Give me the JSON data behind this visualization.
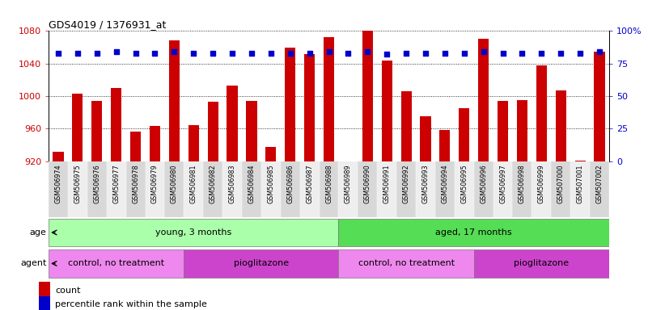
{
  "title": "GDS4019 / 1376931_at",
  "samples": [
    "GSM506974",
    "GSM506975",
    "GSM506976",
    "GSM506977",
    "GSM506978",
    "GSM506979",
    "GSM506980",
    "GSM506981",
    "GSM506982",
    "GSM506983",
    "GSM506984",
    "GSM506985",
    "GSM506986",
    "GSM506987",
    "GSM506988",
    "GSM506989",
    "GSM506990",
    "GSM506991",
    "GSM506992",
    "GSM506993",
    "GSM506994",
    "GSM506995",
    "GSM506996",
    "GSM506997",
    "GSM506998",
    "GSM506999",
    "GSM507000",
    "GSM507001",
    "GSM507002"
  ],
  "counts": [
    932,
    1003,
    994,
    1010,
    956,
    963,
    1068,
    964,
    993,
    1013,
    994,
    938,
    1060,
    1052,
    1072,
    920,
    1080,
    1044,
    1006,
    975,
    958,
    985,
    1070,
    994,
    995,
    1038,
    1007,
    921,
    1055
  ],
  "percentiles": [
    83,
    83,
    83,
    84,
    83,
    83,
    84,
    83,
    83,
    83,
    83,
    83,
    83,
    83,
    84,
    83,
    84,
    82,
    83,
    83,
    83,
    83,
    84,
    83,
    83,
    83,
    83,
    83,
    84
  ],
  "ylim_left": [
    920,
    1080
  ],
  "ylim_right": [
    0,
    100
  ],
  "yticks_left": [
    920,
    960,
    1000,
    1040,
    1080
  ],
  "yticks_right": [
    0,
    25,
    50,
    75,
    100
  ],
  "bar_color": "#cc0000",
  "dot_color": "#0000cc",
  "age_groups": [
    {
      "label": "young, 3 months",
      "start": 0,
      "end": 15,
      "color": "#aaffaa"
    },
    {
      "label": "aged, 17 months",
      "start": 15,
      "end": 29,
      "color": "#55dd55"
    }
  ],
  "agent_groups": [
    {
      "label": "control, no treatment",
      "start": 0,
      "end": 7,
      "color": "#ee88ee"
    },
    {
      "label": "pioglitazone",
      "start": 7,
      "end": 15,
      "color": "#cc44cc"
    },
    {
      "label": "control, no treatment",
      "start": 15,
      "end": 22,
      "color": "#ee88ee"
    },
    {
      "label": "pioglitazone",
      "start": 22,
      "end": 29,
      "color": "#cc44cc"
    }
  ],
  "age_label": "age",
  "agent_label": "agent",
  "legend_count_label": "count",
  "legend_pct_label": "percentile rank within the sample",
  "tick_bg_even": "#d8d8d8",
  "tick_bg_odd": "#eeeeee"
}
